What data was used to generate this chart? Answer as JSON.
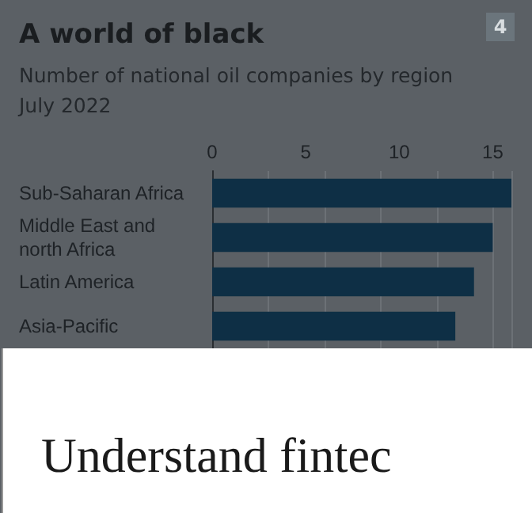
{
  "chart_data": {
    "type": "bar",
    "orientation": "horizontal",
    "title": "A world of black",
    "subtitle": "Number of national oil companies by region\nJuly 2022",
    "categories": [
      "Sub-Saharan Africa",
      "Middle East and north Africa",
      "Latin America",
      "Asia-Pacific"
    ],
    "values": [
      16,
      15,
      14,
      13
    ],
    "color": "#0e2f45",
    "xlim": [
      0,
      16
    ],
    "xticks": [
      0,
      5,
      10,
      15
    ],
    "grid": "x",
    "annotations": [
      "4",
      "Understand fintec"
    ]
  }
}
